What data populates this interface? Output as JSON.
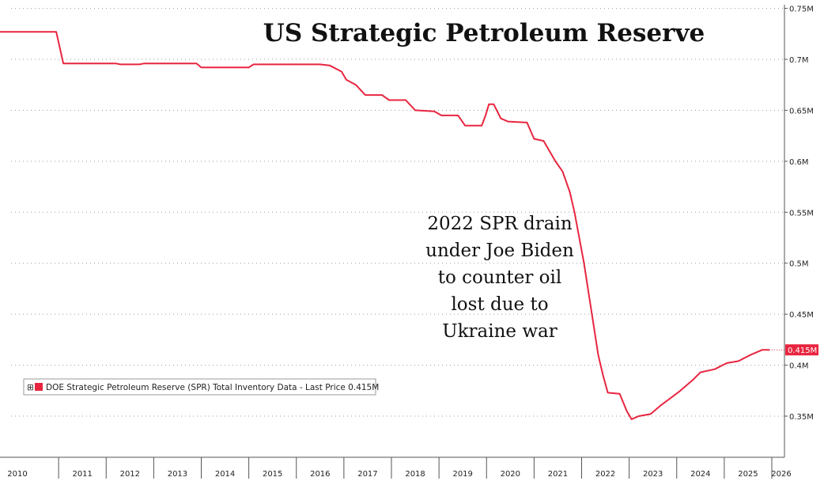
{
  "chart_data": {
    "type": "line",
    "title": "US Strategic Petroleum Reserve",
    "annotation": [
      "2022 SPR drain",
      "under Joe Biden",
      "to counter oil",
      "lost due to",
      "Ukraine war"
    ],
    "legend": {
      "marker": "⊞",
      "label": "DOE Strategic Petroleum Reserve (SPR) Total Inventory Data - Last Price 0.415M",
      "placement": "bottom-left"
    },
    "last_value_label": "0.415M",
    "series_color": "#e8253f",
    "x_ticks": [
      "2010",
      "2011",
      "2012",
      "2013",
      "2014",
      "2015",
      "2016",
      "2017",
      "2018",
      "2019",
      "2020",
      "2021",
      "2022",
      "2023",
      "2024",
      "2025",
      "2026"
    ],
    "y_ticks": [
      {
        "value": 0.35,
        "label": "0.35M"
      },
      {
        "value": 0.4,
        "label": "0.4M"
      },
      {
        "value": 0.45,
        "label": "0.45M"
      },
      {
        "value": 0.5,
        "label": "0.5M"
      },
      {
        "value": 0.55,
        "label": "0.55M"
      },
      {
        "value": 0.6,
        "label": "0.6M"
      },
      {
        "value": 0.65,
        "label": "0.65M"
      },
      {
        "value": 0.7,
        "label": "0.7M"
      },
      {
        "value": 0.75,
        "label": "0.75M"
      }
    ],
    "x_range": [
      2010.0,
      2026.3
    ],
    "y_range": [
      0.32,
      0.75
    ],
    "grid": "dotted horizontal",
    "ylabel": "",
    "xlabel": "",
    "series": [
      {
        "name": "DOE Strategic Petroleum Reserve (SPR) Total Inventory",
        "points": [
          [
            2009.75,
            0.727
          ],
          [
            2010.95,
            0.727
          ],
          [
            2011.1,
            0.696
          ],
          [
            2012.2,
            0.696
          ],
          [
            2012.3,
            0.695
          ],
          [
            2012.7,
            0.695
          ],
          [
            2012.8,
            0.696
          ],
          [
            2013.9,
            0.696
          ],
          [
            2014.0,
            0.692
          ],
          [
            2015.0,
            0.692
          ],
          [
            2015.1,
            0.695
          ],
          [
            2016.5,
            0.695
          ],
          [
            2016.7,
            0.694
          ],
          [
            2016.95,
            0.688
          ],
          [
            2017.05,
            0.68
          ],
          [
            2017.25,
            0.675
          ],
          [
            2017.45,
            0.665
          ],
          [
            2017.8,
            0.665
          ],
          [
            2017.95,
            0.66
          ],
          [
            2018.3,
            0.66
          ],
          [
            2018.5,
            0.65
          ],
          [
            2018.9,
            0.649
          ],
          [
            2019.05,
            0.645
          ],
          [
            2019.4,
            0.645
          ],
          [
            2019.55,
            0.635
          ],
          [
            2019.9,
            0.635
          ],
          [
            2019.98,
            0.645
          ],
          [
            2020.05,
            0.656
          ],
          [
            2020.15,
            0.656
          ],
          [
            2020.3,
            0.642
          ],
          [
            2020.45,
            0.639
          ],
          [
            2020.85,
            0.638
          ],
          [
            2021.0,
            0.622
          ],
          [
            2021.2,
            0.62
          ],
          [
            2021.45,
            0.6
          ],
          [
            2021.6,
            0.59
          ],
          [
            2021.75,
            0.57
          ],
          [
            2021.85,
            0.55
          ],
          [
            2021.95,
            0.525
          ],
          [
            2022.05,
            0.5
          ],
          [
            2022.15,
            0.47
          ],
          [
            2022.25,
            0.44
          ],
          [
            2022.35,
            0.41
          ],
          [
            2022.45,
            0.39
          ],
          [
            2022.55,
            0.373
          ],
          [
            2022.8,
            0.372
          ],
          [
            2022.95,
            0.355
          ],
          [
            2023.05,
            0.347
          ],
          [
            2023.2,
            0.35
          ],
          [
            2023.45,
            0.352
          ],
          [
            2023.65,
            0.36
          ],
          [
            2024.05,
            0.374
          ],
          [
            2024.35,
            0.386
          ],
          [
            2024.5,
            0.393
          ],
          [
            2024.8,
            0.396
          ],
          [
            2025.05,
            0.402
          ],
          [
            2025.3,
            0.404
          ],
          [
            2025.55,
            0.41
          ],
          [
            2025.8,
            0.415
          ],
          [
            2025.95,
            0.415
          ]
        ]
      }
    ]
  }
}
